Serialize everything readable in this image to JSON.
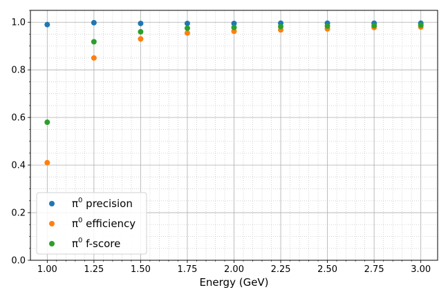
{
  "chart_data": {
    "type": "scatter",
    "title": "",
    "xlabel": "Energy (GeV)",
    "ylabel": "",
    "xlim": [
      0.91,
      3.09
    ],
    "ylim": [
      0.0,
      1.05
    ],
    "x": [
      1.0,
      1.25,
      1.5,
      1.75,
      2.0,
      2.25,
      2.5,
      2.75,
      3.0
    ],
    "x_tick_labels": [
      "1.00",
      "1.25",
      "1.50",
      "1.75",
      "2.00",
      "2.25",
      "2.50",
      "2.75",
      "3.00"
    ],
    "y_tick_labels": [
      "0.0",
      "0.2",
      "0.4",
      "0.6",
      "0.8",
      "1.0"
    ],
    "grid": true,
    "minor_grid": true,
    "legend_position": "lower-left",
    "series": [
      {
        "name_prefix": "π",
        "name_sup": "0",
        "name_suffix": " precision",
        "color": "#1f77b4",
        "values": [
          0.99,
          0.998,
          0.995,
          0.995,
          0.995,
          0.996,
          0.996,
          0.996,
          0.996
        ]
      },
      {
        "name_prefix": "π",
        "name_sup": "0",
        "name_suffix": " efficiency",
        "color": "#ff7f0e",
        "values": [
          0.41,
          0.85,
          0.93,
          0.955,
          0.962,
          0.968,
          0.972,
          0.978,
          0.98
        ]
      },
      {
        "name_prefix": "π",
        "name_sup": "0",
        "name_suffix": " f-score",
        "color": "#2ca02c",
        "values": [
          0.58,
          0.918,
          0.96,
          0.975,
          0.978,
          0.982,
          0.984,
          0.986,
          0.988
        ]
      }
    ]
  }
}
